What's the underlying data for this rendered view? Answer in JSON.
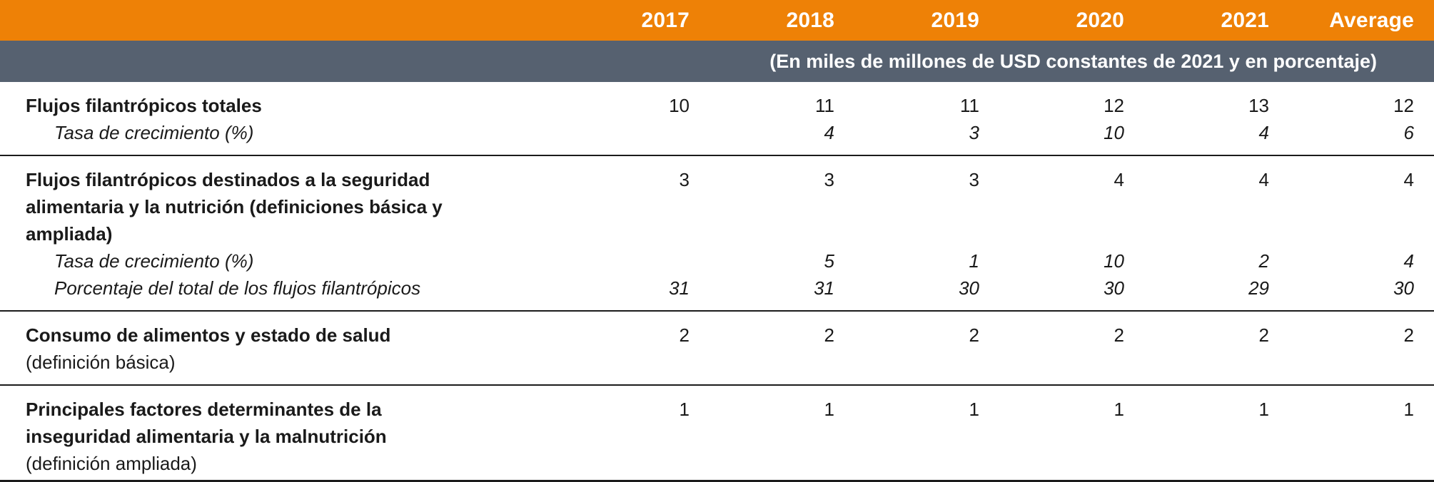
{
  "colors": {
    "header_bg": "#EE8106",
    "subtitle_bg": "#566170",
    "text": "#1A1A1A",
    "header_text": "#FFFFFF",
    "rule": "#1B1B1B"
  },
  "header": {
    "columns": [
      "2017",
      "2018",
      "2019",
      "2020",
      "2021",
      "Average"
    ]
  },
  "subtitle": "(En miles de millones de USD constantes de 2021 y en porcentaje)",
  "table": {
    "sections": [
      {
        "rows": [
          {
            "label": "Flujos filantrópicos totales",
            "sublabel": "",
            "style": "bold",
            "indent": false,
            "values": [
              "10",
              "11",
              "11",
              "12",
              "13",
              "12"
            ]
          },
          {
            "label": "Tasa de crecimiento (%)",
            "sublabel": "",
            "style": "italic",
            "indent": true,
            "values": [
              "",
              "4",
              "3",
              "10",
              "4",
              "6"
            ]
          }
        ]
      },
      {
        "rows": [
          {
            "label": "Flujos filantrópicos destinados a la seguridad alimentaria y la nutrición (definiciones básica y ampliada)",
            "sublabel": "",
            "style": "bold",
            "indent": false,
            "values": [
              "3",
              "3",
              "3",
              "4",
              "4",
              "4"
            ]
          },
          {
            "label": "Tasa de crecimiento (%)",
            "sublabel": "",
            "style": "italic",
            "indent": true,
            "values": [
              "",
              "5",
              "1",
              "10",
              "2",
              "4"
            ]
          },
          {
            "label": "Porcentaje del total de los flujos filantrópicos",
            "sublabel": "",
            "style": "italic",
            "indent": true,
            "values": [
              "31",
              "31",
              "30",
              "30",
              "29",
              "30"
            ]
          }
        ]
      },
      {
        "rows": [
          {
            "label": "Consumo de alimentos y estado de salud",
            "sublabel": "(definición básica)",
            "style": "bold",
            "indent": false,
            "values": [
              "2",
              "2",
              "2",
              "2",
              "2",
              "2"
            ]
          }
        ]
      },
      {
        "rows": [
          {
            "label": "Principales factores determinantes de la inseguridad alimentaria y la malnutrición",
            "sublabel": "(definición ampliada)",
            "style": "bold",
            "indent": false,
            "values": [
              "1",
              "1",
              "1",
              "1",
              "1",
              "1"
            ]
          }
        ]
      }
    ]
  }
}
